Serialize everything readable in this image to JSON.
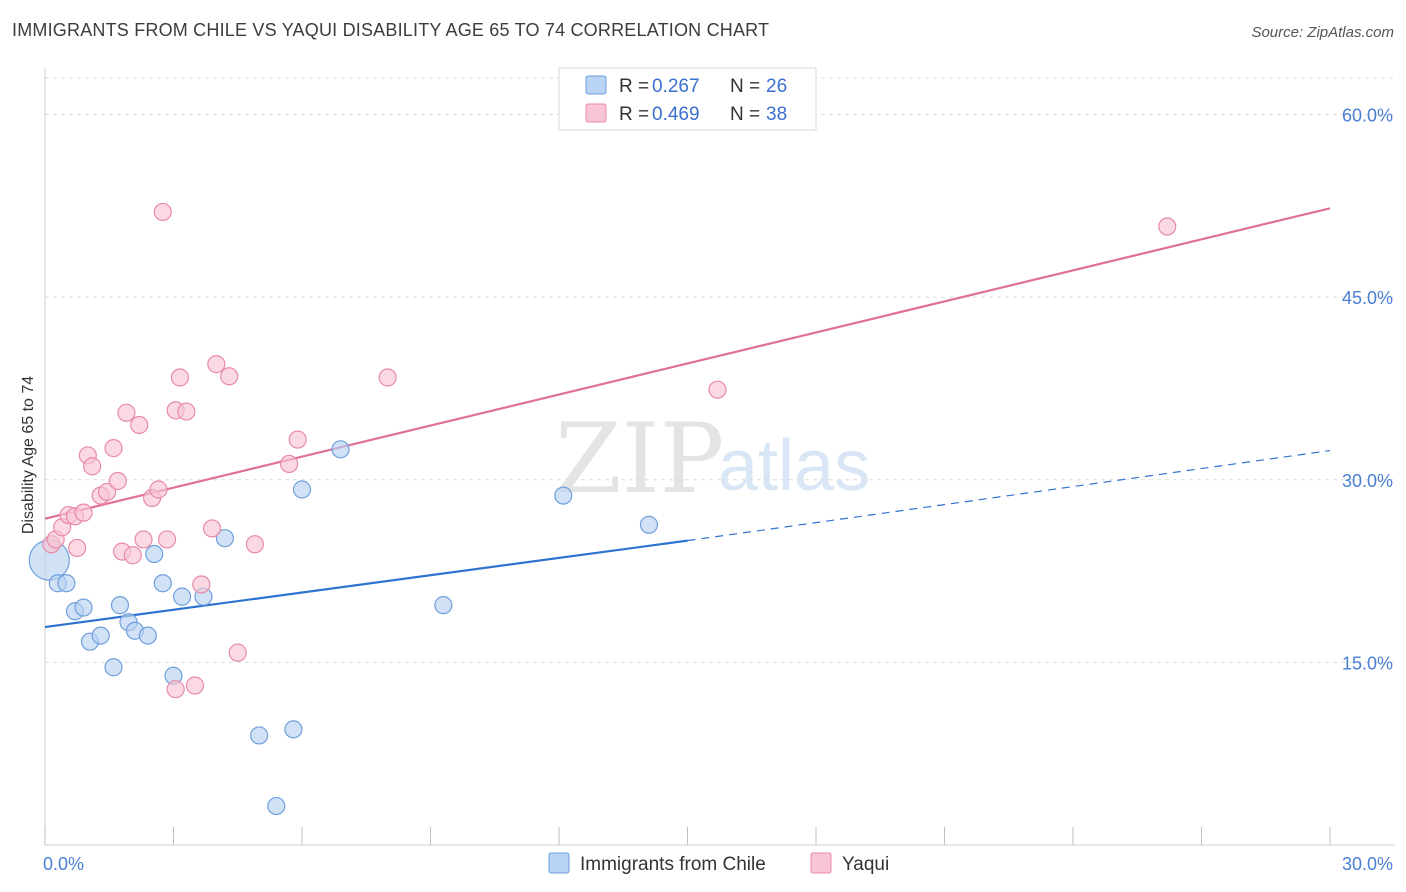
{
  "title": "IMMIGRANTS FROM CHILE VS YAQUI DISABILITY AGE 65 TO 74 CORRELATION CHART",
  "source": "Source: ZipAtlas.com",
  "watermark": {
    "zip": "ZIP",
    "atlas": "atlas"
  },
  "legend": {
    "r_label": "R =",
    "n_label": "N =",
    "rows": [
      {
        "r": "0.267",
        "n": "26"
      },
      {
        "r": "0.469",
        "n": "38"
      }
    ]
  },
  "colors": {
    "blue_fill": "#b8d3f3",
    "blue_stroke": "#6f9fdc",
    "blue_line": "#2f73d0",
    "pink_fill": "#f7c5d4",
    "pink_stroke": "#e88aa8",
    "pink_line": "#e0709a"
  },
  "chart_data": {
    "type": "scatter",
    "xlabel": "",
    "ylabel": "Disability Age 65 to 74",
    "xlim": [
      0,
      30
    ],
    "ylim": [
      0,
      63
    ],
    "x_ticks": [
      {
        "value": 0,
        "label": "0.0%"
      },
      {
        "value": 30,
        "label": "30.0%"
      }
    ],
    "y_ticks": [
      {
        "value": 15,
        "label": "15.0%"
      },
      {
        "value": 30,
        "label": "30.0%"
      },
      {
        "value": 45,
        "label": "45.0%"
      },
      {
        "value": 60,
        "label": "60.0%"
      }
    ],
    "grid": true,
    "legend_position": "top-center",
    "series": [
      {
        "name": "Immigrants from Chile",
        "color": "#6f9fdc",
        "points": [
          [
            0.1,
            23.4
          ],
          [
            0.3,
            21.5
          ],
          [
            0.5,
            21.5
          ],
          [
            0.7,
            19.2
          ],
          [
            0.9,
            19.5
          ],
          [
            1.05,
            16.7
          ],
          [
            1.3,
            17.2
          ],
          [
            1.6,
            14.6
          ],
          [
            1.75,
            19.7
          ],
          [
            1.95,
            18.3
          ],
          [
            2.1,
            17.6
          ],
          [
            2.4,
            17.2
          ],
          [
            2.55,
            23.9
          ],
          [
            2.75,
            21.5
          ],
          [
            3.0,
            13.9
          ],
          [
            3.2,
            20.4
          ],
          [
            3.7,
            20.4
          ],
          [
            4.2,
            25.2
          ],
          [
            5.0,
            9.0
          ],
          [
            5.4,
            3.2
          ],
          [
            5.8,
            9.5
          ],
          [
            6.0,
            29.2
          ],
          [
            6.9,
            32.5
          ],
          [
            9.3,
            19.7
          ],
          [
            12.1,
            28.7
          ],
          [
            14.1,
            26.3
          ]
        ],
        "trend_solid": [
          [
            0,
            17.9
          ],
          [
            15.0,
            25.0
          ]
        ],
        "trend_dashed": [
          [
            15.0,
            25.0
          ],
          [
            30.0,
            32.4
          ]
        ]
      },
      {
        "name": "Yaqui",
        "color": "#e88aa8",
        "points": [
          [
            0.15,
            24.7
          ],
          [
            0.25,
            25.1
          ],
          [
            0.4,
            26.1
          ],
          [
            0.55,
            27.1
          ],
          [
            0.7,
            27.0
          ],
          [
            0.75,
            24.4
          ],
          [
            0.9,
            27.3
          ],
          [
            1.0,
            32.0
          ],
          [
            1.1,
            31.1
          ],
          [
            1.3,
            28.7
          ],
          [
            1.45,
            29.0
          ],
          [
            1.6,
            32.6
          ],
          [
            1.7,
            29.9
          ],
          [
            1.8,
            24.1
          ],
          [
            1.9,
            35.5
          ],
          [
            2.05,
            23.8
          ],
          [
            2.2,
            34.5
          ],
          [
            2.3,
            25.1
          ],
          [
            2.5,
            28.5
          ],
          [
            2.65,
            29.2
          ],
          [
            2.75,
            52.0
          ],
          [
            2.85,
            25.1
          ],
          [
            3.05,
            35.7
          ],
          [
            3.05,
            12.8
          ],
          [
            3.15,
            38.4
          ],
          [
            3.3,
            35.6
          ],
          [
            3.5,
            13.1
          ],
          [
            3.65,
            21.4
          ],
          [
            3.9,
            26.0
          ],
          [
            4.0,
            39.5
          ],
          [
            4.3,
            38.5
          ],
          [
            4.5,
            15.8
          ],
          [
            4.9,
            24.7
          ],
          [
            5.7,
            31.3
          ],
          [
            5.9,
            33.3
          ],
          [
            8.0,
            38.4
          ],
          [
            15.7,
            37.4
          ],
          [
            26.2,
            50.8
          ]
        ],
        "trend_solid": [
          [
            0,
            26.8
          ],
          [
            30.0,
            52.3
          ]
        ]
      }
    ]
  },
  "bottom_legend": [
    {
      "label": "Immigrants from Chile"
    },
    {
      "label": "Yaqui"
    }
  ]
}
